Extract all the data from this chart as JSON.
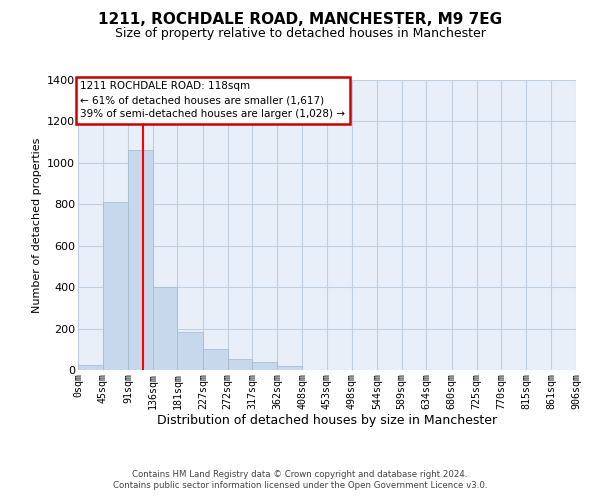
{
  "title": "1211, ROCHDALE ROAD, MANCHESTER, M9 7EG",
  "subtitle": "Size of property relative to detached houses in Manchester",
  "xlabel": "Distribution of detached houses by size in Manchester",
  "ylabel": "Number of detached properties",
  "bar_color": "#c8d8ec",
  "bar_edgecolor": "#a0b8d0",
  "grid_color": "#c0cfe0",
  "plot_bg_color": "#e8eff8",
  "bin_labels": [
    "0sqm",
    "45sqm",
    "91sqm",
    "136sqm",
    "181sqm",
    "227sqm",
    "272sqm",
    "317sqm",
    "362sqm",
    "408sqm",
    "453sqm",
    "498sqm",
    "544sqm",
    "589sqm",
    "634sqm",
    "680sqm",
    "725sqm",
    "770sqm",
    "815sqm",
    "861sqm",
    "906sqm"
  ],
  "bin_edges": [
    0,
    45,
    91,
    136,
    181,
    227,
    272,
    317,
    362,
    408,
    453,
    498,
    544,
    589,
    634,
    680,
    725,
    770,
    815,
    861,
    906
  ],
  "bar_heights": [
    22,
    810,
    1060,
    400,
    185,
    100,
    55,
    38,
    18,
    0,
    0,
    0,
    0,
    0,
    0,
    0,
    0,
    0,
    0,
    0
  ],
  "ylim": [
    0,
    1400
  ],
  "yticks": [
    0,
    200,
    400,
    600,
    800,
    1000,
    1200,
    1400
  ],
  "red_line_x": 118,
  "ann_line1": "1211 ROCHDALE ROAD: 118sqm",
  "ann_line2": "← 61% of detached houses are smaller (1,617)",
  "ann_line3": "39% of semi-detached houses are larger (1,028) →",
  "ann_box_facecolor": "#ffffff",
  "ann_box_edgecolor": "#cc0000",
  "footer_line1": "Contains HM Land Registry data © Crown copyright and database right 2024.",
  "footer_line2": "Contains public sector information licensed under the Open Government Licence v3.0."
}
